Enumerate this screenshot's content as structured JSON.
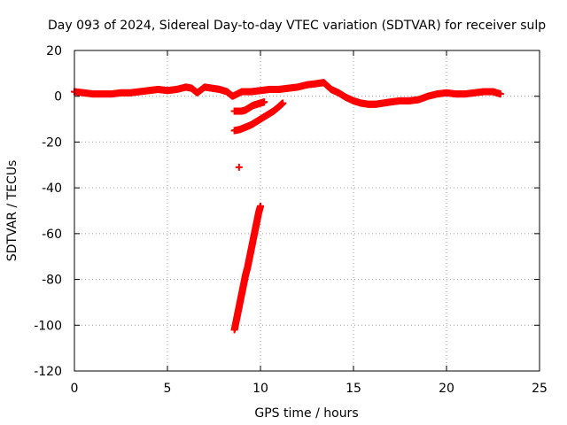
{
  "chart_data": {
    "type": "scatter",
    "title": "Day 093 of 2024, Sidereal Day-to-day VTEC variation (SDTVAR) for receiver sulp",
    "xlabel": "GPS time / hours",
    "ylabel": "SDTVAR / TECUs",
    "xlim": [
      0,
      25
    ],
    "ylim": [
      -120,
      20
    ],
    "xticks": [
      0,
      5,
      10,
      15,
      20,
      25
    ],
    "yticks": [
      -120,
      -100,
      -80,
      -60,
      -40,
      -20,
      0,
      20
    ],
    "grid": true,
    "marker": "+",
    "color": "#ff0000",
    "series": [
      {
        "name": "main",
        "x": [
          0.0,
          0.5,
          1.0,
          1.5,
          2.0,
          2.5,
          3.0,
          3.5,
          4.0,
          4.5,
          5.0,
          5.5,
          6.0,
          6.3,
          6.6,
          7.0,
          7.4,
          7.8,
          8.2,
          8.5,
          9.0,
          9.5,
          10.0,
          10.5,
          11.0,
          11.5,
          12.0,
          12.5,
          13.0,
          13.4,
          13.8,
          14.2,
          14.6,
          15.0,
          15.4,
          15.8,
          16.2,
          16.6,
          17.0,
          17.5,
          18.0,
          18.5,
          19.0,
          19.5,
          20.0,
          20.5,
          21.0,
          21.5,
          22.0,
          22.5,
          22.9
        ],
        "y": [
          2,
          1.5,
          1,
          1,
          1,
          1.5,
          1.5,
          2,
          2.5,
          3,
          2.5,
          3,
          4,
          3.5,
          1.5,
          4,
          3.5,
          3,
          2,
          0,
          2,
          2,
          2.5,
          3,
          3,
          3.5,
          4,
          5,
          5.5,
          6,
          3,
          1.5,
          -0.5,
          -2,
          -3,
          -3.5,
          -3.5,
          -3,
          -2.5,
          -2,
          -2,
          -1.5,
          0,
          1,
          1.5,
          1,
          1,
          1.5,
          2,
          2,
          1
        ]
      },
      {
        "name": "branch-a",
        "x": [
          8.6,
          8.8,
          9.0,
          9.2,
          9.4,
          9.6,
          9.8,
          10.0,
          10.2
        ],
        "y": [
          -6.5,
          -6.5,
          -6.5,
          -6,
          -5,
          -4,
          -3.5,
          -3,
          -2.5
        ]
      },
      {
        "name": "branch-b",
        "x": [
          8.6,
          8.9,
          9.2,
          9.5,
          9.8,
          10.1,
          10.4,
          10.7,
          11.0,
          11.2
        ],
        "y": [
          -15,
          -14.5,
          -13.5,
          -12.5,
          -11,
          -9.5,
          -8,
          -6.5,
          -4.5,
          -3
        ]
      },
      {
        "name": "outlier",
        "x": [
          8.85
        ],
        "y": [
          -31
        ]
      },
      {
        "name": "steep-drop",
        "x": [
          8.6,
          8.7,
          8.8,
          8.9,
          9.0,
          9.1,
          9.2,
          9.3,
          9.4,
          9.5,
          9.6,
          9.7,
          9.8,
          9.9,
          10.0
        ],
        "y": [
          -102,
          -98,
          -94,
          -90,
          -86,
          -82,
          -78,
          -75,
          -71,
          -67,
          -63,
          -59,
          -55,
          -51,
          -48
        ]
      }
    ]
  }
}
